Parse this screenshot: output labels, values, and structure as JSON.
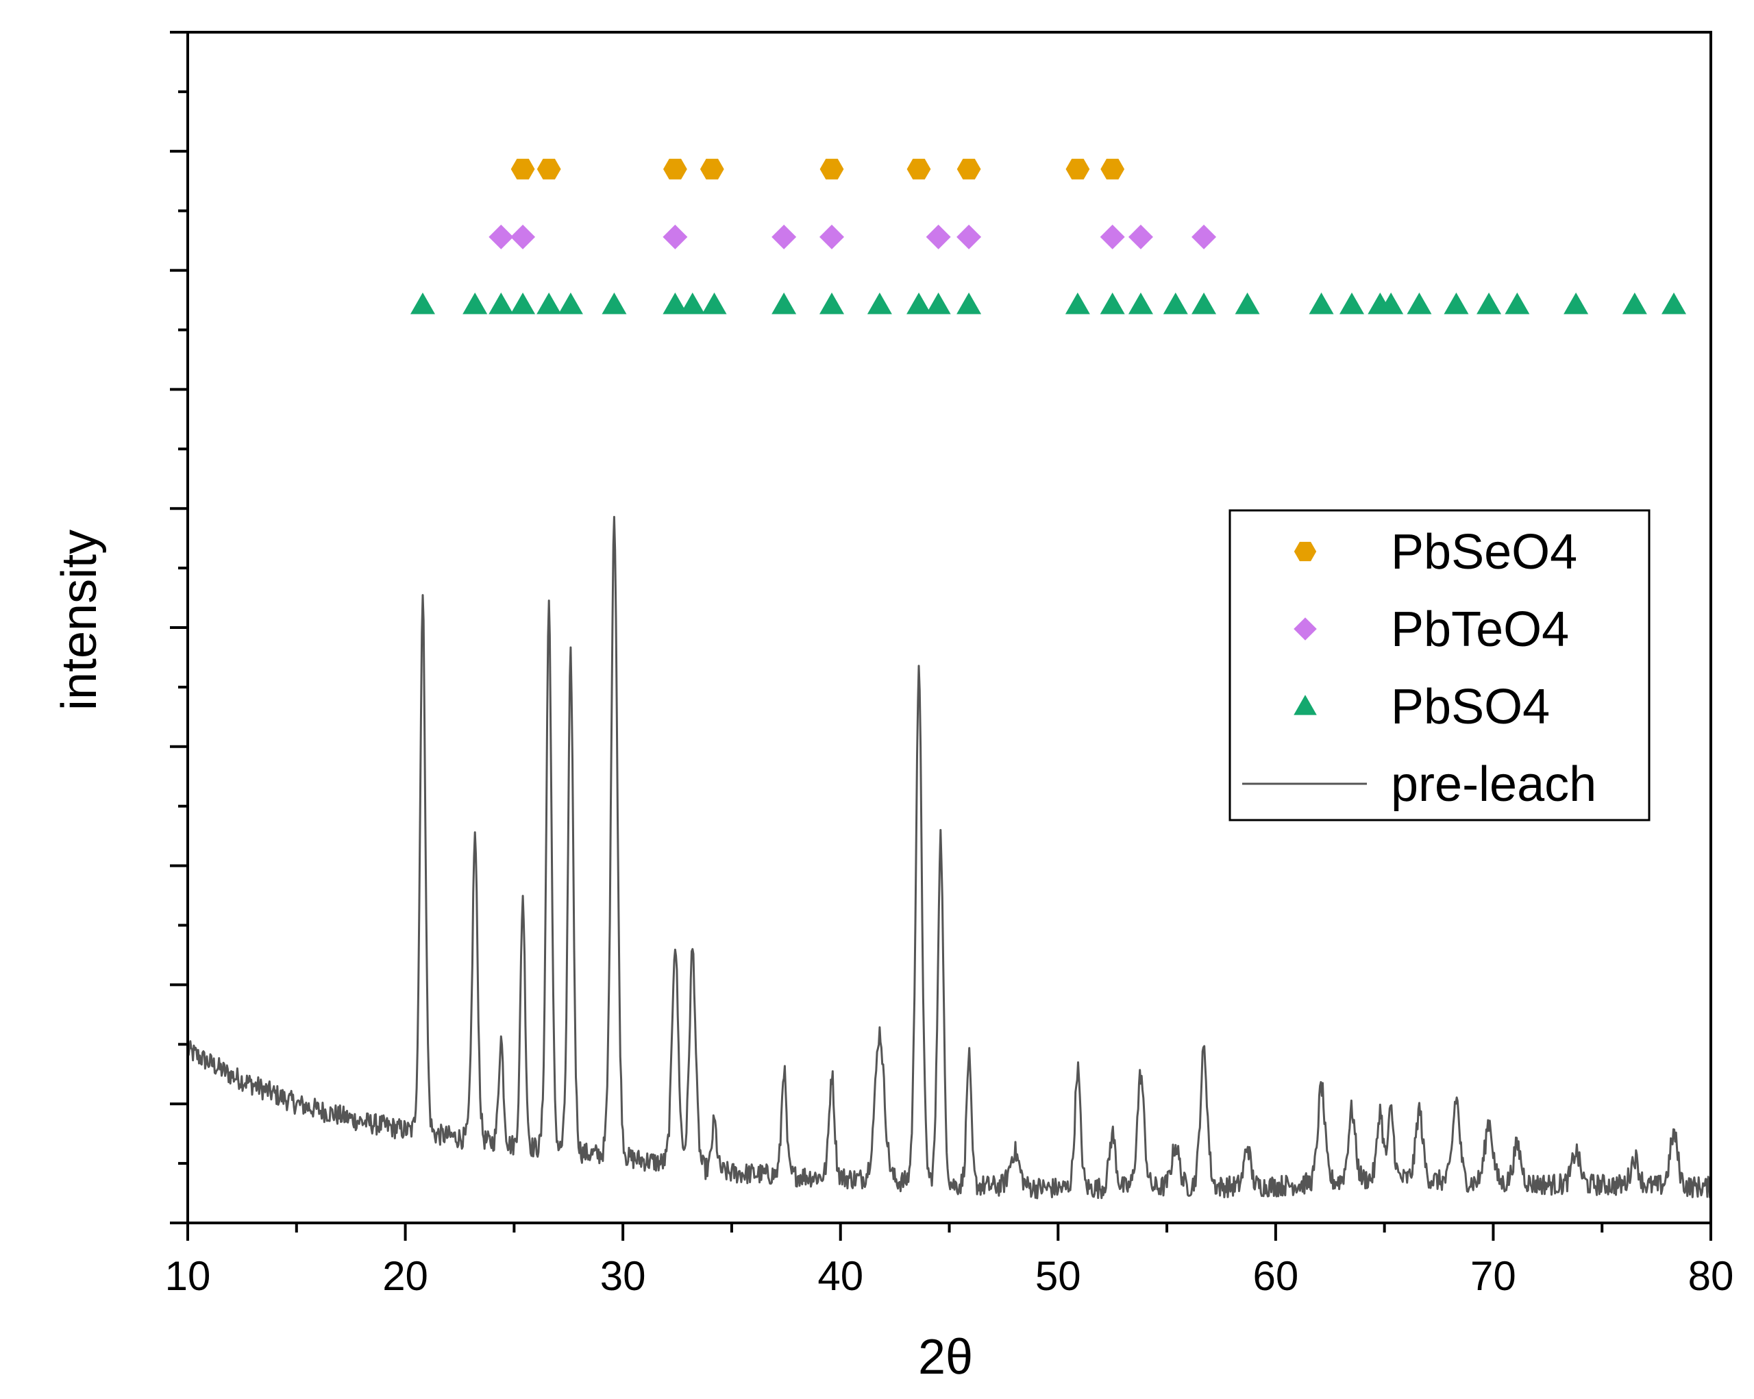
{
  "chart_data": {
    "type": "scatter",
    "xlabel": "2θ",
    "ylabel": "intensity",
    "xlim": [
      10,
      80
    ],
    "xticks": [
      10,
      20,
      30,
      40,
      50,
      60,
      70,
      80
    ],
    "ylim": [
      0,
      100
    ],
    "yaxis_numbers_shown": false,
    "legend_position": "right",
    "series": [
      {
        "name": "PbSeO4",
        "type": "scatter",
        "marker": "hexagon",
        "color": "#e69f00",
        "level": 88.5,
        "x": [
          25.4,
          26.6,
          32.4,
          34.1,
          39.6,
          43.6,
          45.9,
          50.9,
          52.5
        ]
      },
      {
        "name": "PbTeO4",
        "type": "scatter",
        "marker": "diamond",
        "color": "#cc79ec",
        "level": 82.8,
        "x": [
          24.4,
          25.4,
          32.4,
          37.4,
          39.6,
          44.5,
          45.9,
          52.5,
          53.8,
          56.7
        ]
      },
      {
        "name": "PbSO4",
        "type": "scatter",
        "marker": "triangle",
        "color": "#14a86e",
        "level": 77.1,
        "x": [
          20.8,
          23.2,
          24.4,
          25.4,
          26.6,
          27.6,
          29.6,
          32.4,
          33.2,
          34.2,
          37.4,
          39.6,
          41.8,
          43.6,
          44.5,
          45.9,
          50.9,
          52.5,
          53.8,
          55.4,
          56.7,
          58.7,
          62.1,
          63.5,
          64.8,
          65.3,
          66.6,
          68.3,
          69.8,
          71.1,
          73.8,
          76.5,
          78.3
        ]
      },
      {
        "name": "pre-leach",
        "type": "line",
        "color": "#555555",
        "profile": {
          "background": [
            [
              10,
              14.5
            ],
            [
              12,
              12.4
            ],
            [
              15,
              10.0
            ],
            [
              18,
              8.5
            ],
            [
              20,
              7.8
            ],
            [
              25,
              6.5
            ],
            [
              30,
              5.5
            ],
            [
              35,
              4.2
            ],
            [
              40,
              3.8
            ],
            [
              45,
              3.2
            ],
            [
              50,
              2.9
            ],
            [
              55,
              3.0
            ],
            [
              60,
              3.1
            ],
            [
              65,
              3.8
            ],
            [
              70,
              3.3
            ],
            [
              75,
              3.2
            ],
            [
              80,
              3.0
            ]
          ],
          "peaks": [
            {
              "x": 20.8,
              "y": 52.5,
              "w": 0.17
            },
            {
              "x": 23.2,
              "y": 32.5,
              "w": 0.17
            },
            {
              "x": 24.4,
              "y": 15.5,
              "w": 0.15
            },
            {
              "x": 25.4,
              "y": 27.5,
              "w": 0.15
            },
            {
              "x": 26.6,
              "y": 52.0,
              "w": 0.17
            },
            {
              "x": 27.6,
              "y": 47.5,
              "w": 0.17
            },
            {
              "x": 29.6,
              "y": 59.5,
              "w": 0.2
            },
            {
              "x": 32.4,
              "y": 23.5,
              "w": 0.2
            },
            {
              "x": 33.2,
              "y": 23.0,
              "w": 0.2
            },
            {
              "x": 34.2,
              "y": 8.5,
              "w": 0.15
            },
            {
              "x": 37.4,
              "y": 13.0,
              "w": 0.15
            },
            {
              "x": 39.6,
              "y": 12.5,
              "w": 0.17
            },
            {
              "x": 41.8,
              "y": 16.0,
              "w": 0.3
            },
            {
              "x": 43.6,
              "y": 46.0,
              "w": 0.2
            },
            {
              "x": 44.6,
              "y": 32.5,
              "w": 0.18
            },
            {
              "x": 45.9,
              "y": 14.0,
              "w": 0.15
            },
            {
              "x": 48.0,
              "y": 6.0,
              "w": 0.3
            },
            {
              "x": 50.9,
              "y": 13.0,
              "w": 0.18
            },
            {
              "x": 52.5,
              "y": 7.5,
              "w": 0.2
            },
            {
              "x": 53.8,
              "y": 12.5,
              "w": 0.22
            },
            {
              "x": 55.4,
              "y": 6.5,
              "w": 0.25
            },
            {
              "x": 56.7,
              "y": 14.5,
              "w": 0.22
            },
            {
              "x": 58.7,
              "y": 6.5,
              "w": 0.2
            },
            {
              "x": 62.1,
              "y": 11.5,
              "w": 0.22
            },
            {
              "x": 63.5,
              "y": 9.5,
              "w": 0.22
            },
            {
              "x": 64.8,
              "y": 9.5,
              "w": 0.18
            },
            {
              "x": 65.3,
              "y": 9.5,
              "w": 0.18
            },
            {
              "x": 66.6,
              "y": 9.5,
              "w": 0.22
            },
            {
              "x": 68.3,
              "y": 10.5,
              "w": 0.22
            },
            {
              "x": 69.8,
              "y": 8.5,
              "w": 0.25
            },
            {
              "x": 71.1,
              "y": 6.5,
              "w": 0.25
            },
            {
              "x": 73.8,
              "y": 6.0,
              "w": 0.25
            },
            {
              "x": 76.5,
              "y": 5.5,
              "w": 0.25
            },
            {
              "x": 78.3,
              "y": 7.5,
              "w": 0.25
            }
          ],
          "noise_amplitude": 0.9
        }
      }
    ]
  }
}
